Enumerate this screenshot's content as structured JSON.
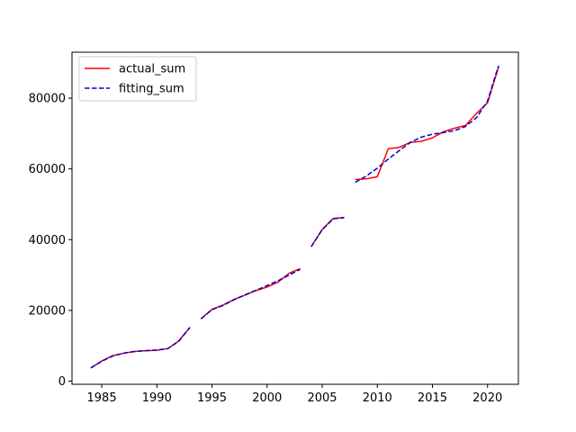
{
  "chart_data": {
    "type": "line",
    "title": "",
    "xlabel": "",
    "ylabel": "",
    "xlim": [
      1982.3,
      2022.8
    ],
    "ylim": [
      -900,
      93000
    ],
    "xticks": [
      1985,
      1990,
      1995,
      2000,
      2005,
      2010,
      2015,
      2020
    ],
    "xtick_labels": [
      "1985",
      "1990",
      "1995",
      "2000",
      "2005",
      "2010",
      "2015",
      "2020"
    ],
    "yticks": [
      0,
      20000,
      40000,
      60000,
      80000
    ],
    "ytick_labels": [
      "0",
      "20000",
      "40000",
      "60000",
      "80000"
    ],
    "grid": false,
    "legend_position": "top-left",
    "series": [
      {
        "name": "actual_sum",
        "color": "#ff0000",
        "style": "solid",
        "segments": [
          [
            [
              1984,
              3700
            ],
            [
              1985,
              5700
            ],
            [
              1986,
              7200
            ],
            [
              1987,
              7900
            ],
            [
              1988,
              8400
            ],
            [
              1989,
              8600
            ],
            [
              1990,
              8700
            ],
            [
              1991,
              9200
            ],
            [
              1992,
              11400
            ],
            [
              1993,
              15200
            ]
          ],
          [
            [
              1994,
              17600
            ],
            [
              1995,
              20300
            ],
            [
              1996,
              21500
            ],
            [
              1997,
              23100
            ],
            [
              1998,
              24300
            ],
            [
              1999,
              25600
            ],
            [
              2000,
              26600
            ],
            [
              2001,
              28000
            ],
            [
              2002,
              30500
            ],
            [
              2003,
              31800
            ]
          ],
          [
            [
              2004,
              38000
            ],
            [
              2005,
              42900
            ],
            [
              2006,
              46000
            ],
            [
              2007,
              46300
            ]
          ],
          [
            [
              2008,
              57000
            ],
            [
              2009,
              57200
            ],
            [
              2010,
              57800
            ],
            [
              2011,
              65700
            ],
            [
              2012,
              66100
            ],
            [
              2013,
              67500
            ],
            [
              2014,
              67800
            ],
            [
              2015,
              68800
            ],
            [
              2016,
              70500
            ],
            [
              2017,
              71500
            ],
            [
              2018,
              72300
            ],
            [
              2019,
              75700
            ],
            [
              2020,
              78700
            ],
            [
              2021,
              88800
            ]
          ]
        ]
      },
      {
        "name": "fitting_sum",
        "color": "#0000cd",
        "style": "dashed",
        "segments": [
          [
            [
              1984,
              3700
            ],
            [
              1985,
              5600
            ],
            [
              1986,
              7100
            ],
            [
              1987,
              7900
            ],
            [
              1988,
              8400
            ],
            [
              1989,
              8600
            ],
            [
              1990,
              8800
            ],
            [
              1991,
              9200
            ],
            [
              1992,
              11300
            ],
            [
              1993,
              15200
            ]
          ],
          [
            [
              1994,
              17600
            ],
            [
              1995,
              20200
            ],
            [
              1996,
              21400
            ],
            [
              1997,
              23000
            ],
            [
              1998,
              24400
            ],
            [
              1999,
              25700
            ],
            [
              2000,
              27000
            ],
            [
              2001,
              28400
            ],
            [
              2002,
              30000
            ],
            [
              2003,
              31600
            ]
          ],
          [
            [
              2004,
              38000
            ],
            [
              2005,
              42800
            ],
            [
              2006,
              45900
            ],
            [
              2007,
              46200
            ]
          ],
          [
            [
              2008,
              56200
            ],
            [
              2009,
              58000
            ],
            [
              2010,
              60200
            ],
            [
              2011,
              62800
            ],
            [
              2012,
              65200
            ],
            [
              2013,
              67500
            ],
            [
              2014,
              69000
            ],
            [
              2015,
              69800
            ],
            [
              2016,
              70300
            ],
            [
              2017,
              70800
            ],
            [
              2018,
              72000
            ],
            [
              2019,
              74500
            ],
            [
              2020,
              79200
            ],
            [
              2021,
              89200
            ]
          ]
        ]
      }
    ]
  }
}
